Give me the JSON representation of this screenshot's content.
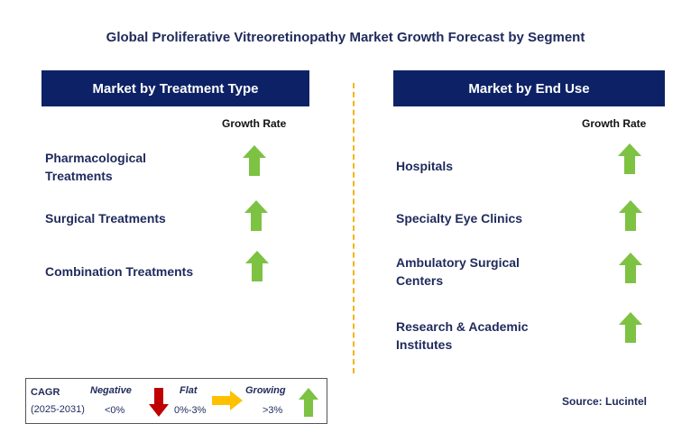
{
  "title": "Global Proliferative Vitreoretinopathy Market Growth Forecast by Segment",
  "left_panel": {
    "header": "Market by Treatment Type",
    "growth_rate_label": "Growth Rate",
    "items": [
      {
        "line1": "Pharmacological",
        "line2": "Treatments",
        "trend": "growing"
      },
      {
        "line1": "Surgical Treatments",
        "line2": "",
        "trend": "growing"
      },
      {
        "line1": "Combination Treatments",
        "line2": "",
        "trend": "growing"
      }
    ]
  },
  "right_panel": {
    "header": "Market by End Use",
    "growth_rate_label": "Growth Rate",
    "items": [
      {
        "line1": "Hospitals",
        "line2": "",
        "trend": "growing"
      },
      {
        "line1": "Specialty Eye Clinics",
        "line2": "",
        "trend": "growing"
      },
      {
        "line1": "Ambulatory Surgical",
        "line2": "Centers",
        "trend": "growing"
      },
      {
        "line1": "Research & Academic",
        "line2": "Institutes",
        "trend": "growing"
      }
    ]
  },
  "legend": {
    "cagr_label": "CAGR",
    "period": "(2025-2031)",
    "negative_label": "Negative",
    "negative_value": "<0%",
    "flat_label": "Flat",
    "flat_value": "0%-3%",
    "growing_label": "Growing",
    "growing_value": ">3%"
  },
  "source": "Source: Lucintel",
  "colors": {
    "header_bg": "#0d2266",
    "text": "#1f2a5c",
    "growing_arrow": "#7dc242",
    "negative_arrow": "#c00000",
    "flat_arrow": "#ffc000",
    "divider": "#f2b418"
  }
}
